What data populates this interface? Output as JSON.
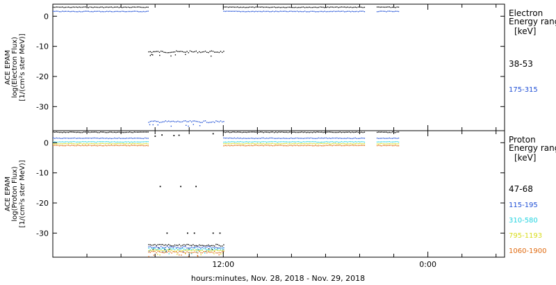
{
  "xlabel": "hours:minutes, Nov. 28, 2018 - Nov. 29, 2018",
  "x_tick_labels": [
    "12:00",
    "0:00"
  ],
  "chart_data": [
    {
      "type": "scatter",
      "panel": "electron",
      "ylabel": [
        "ACE EPAM",
        "log(Electron Flux)",
        "[1/(cm²s ster MeV)]"
      ],
      "legend_title": [
        "Electron",
        "Energy ranges",
        "[keV]"
      ],
      "yticks": [
        0,
        -10,
        -20,
        -30
      ],
      "ylim": [
        -38,
        4
      ],
      "x_unit": "hours since Nov. 28, 2018 00:00",
      "xlim": [
        2,
        28.5
      ],
      "grid": false,
      "legend_placement": "right",
      "series": [
        {
          "name": "38-53",
          "color": "#000000",
          "data_segments": [
            {
              "x": [
                2.0,
                7.6
              ],
              "y": 3.0
            },
            {
              "x": [
                7.6,
                12.0
              ],
              "y": -11.8
            },
            {
              "x": [
                12.0,
                20.3
              ],
              "y": 3.0
            },
            {
              "x": [
                21.0,
                22.3
              ],
              "y": 3.0
            }
          ]
        },
        {
          "name": "175-315",
          "color": "#1f4fd6",
          "data_segments": [
            {
              "x": [
                2.0,
                7.6
              ],
              "y": 1.6
            },
            {
              "x": [
                7.6,
                12.0
              ],
              "y": -35.0
            },
            {
              "x": [
                12.0,
                20.3
              ],
              "y": 1.6
            },
            {
              "x": [
                21.0,
                22.3
              ],
              "y": 1.6
            }
          ]
        }
      ]
    },
    {
      "type": "scatter",
      "panel": "proton",
      "ylabel": [
        "ACE EPAM",
        "log(Proton Flux)",
        "[1/(cm²s ster MeV)]"
      ],
      "legend_title": [
        "Proton",
        "Energy ranges",
        "[keV]"
      ],
      "yticks": [
        0,
        -10,
        -20,
        -30
      ],
      "ylim": [
        -38,
        4
      ],
      "x_unit": "hours since Nov. 28, 2018 00:00",
      "xlim": [
        2,
        28.5
      ],
      "grid": false,
      "legend_placement": "right",
      "series": [
        {
          "name": "47-68",
          "color": "#000000",
          "data_segments": [
            {
              "x": [
                2.0,
                7.6
              ],
              "y": 3.5
            },
            {
              "x": [
                7.6,
                12.0
              ],
              "y": -34.0
            },
            {
              "x": [
                12.0,
                20.3
              ],
              "y": 3.5
            },
            {
              "x": [
                21.0,
                22.3
              ],
              "y": 3.5
            }
          ],
          "scattered_points": [
            [
              8.0,
              2.2
            ],
            [
              8.4,
              2.6
            ],
            [
              9.1,
              2.4
            ],
            [
              9.4,
              2.5
            ],
            [
              11.4,
              3.0
            ],
            [
              8.3,
              -14.5
            ],
            [
              9.5,
              -14.5
            ],
            [
              10.4,
              -14.5
            ],
            [
              8.7,
              -30.0
            ],
            [
              9.9,
              -30.0
            ],
            [
              10.3,
              -30.0
            ],
            [
              11.4,
              -30.0
            ],
            [
              11.8,
              -30.0
            ]
          ]
        },
        {
          "name": "115-195",
          "color": "#1f4fd6",
          "data_segments": [
            {
              "x": [
                2.0,
                7.6
              ],
              "y": 1.5
            },
            {
              "x": [
                7.6,
                12.0
              ],
              "y": -34.7
            },
            {
              "x": [
                12.0,
                20.3
              ],
              "y": 1.5
            },
            {
              "x": [
                21.0,
                22.3
              ],
              "y": 1.5
            }
          ]
        },
        {
          "name": "310-580",
          "color": "#22d3e0",
          "data_segments": [
            {
              "x": [
                2.0,
                7.6
              ],
              "y": 0.3
            },
            {
              "x": [
                7.6,
                12.0
              ],
              "y": -35.3
            },
            {
              "x": [
                12.0,
                20.3
              ],
              "y": 0.3
            },
            {
              "x": [
                21.0,
                22.3
              ],
              "y": 0.3
            }
          ]
        },
        {
          "name": "795-1193",
          "color": "#d8dc1c",
          "data_segments": [
            {
              "x": [
                2.0,
                7.6
              ],
              "y": -0.3
            },
            {
              "x": [
                7.6,
                12.0
              ],
              "y": -35.8
            },
            {
              "x": [
                12.0,
                20.3
              ],
              "y": -0.3
            },
            {
              "x": [
                21.0,
                22.3
              ],
              "y": -0.3
            }
          ]
        },
        {
          "name": "1060-1900",
          "color": "#e06a10",
          "data_segments": [
            {
              "x": [
                2.0,
                7.6
              ],
              "y": -0.9
            },
            {
              "x": [
                7.6,
                12.0
              ],
              "y": -36.3
            },
            {
              "x": [
                12.0,
                20.3
              ],
              "y": -0.9
            },
            {
              "x": [
                21.0,
                22.3
              ],
              "y": -0.9
            }
          ]
        }
      ]
    }
  ]
}
